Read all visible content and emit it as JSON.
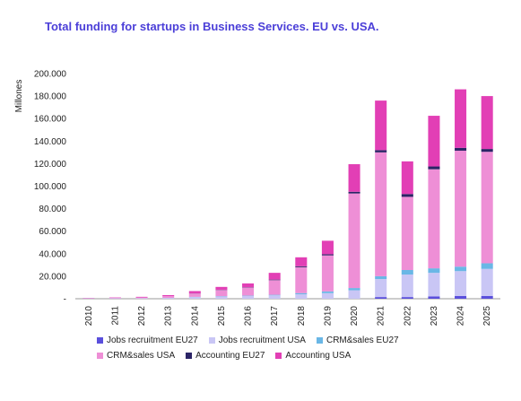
{
  "chart_data": {
    "type": "bar",
    "stacked": true,
    "title": "Total funding for startups in Business Services. EU vs. USA.",
    "ylabel": "Millones",
    "ylim": [
      0,
      200000
    ],
    "yticks": [
      "-",
      "20.000",
      "40.000",
      "60.000",
      "80.000",
      "100.000",
      "120.000",
      "140.000",
      "160.000",
      "180.000",
      "200.000"
    ],
    "categories": [
      "2010",
      "2011",
      "2012",
      "2013",
      "2014",
      "2015",
      "2016",
      "2017",
      "2018",
      "2019",
      "2020",
      "2021",
      "2022",
      "2023",
      "2024",
      "2025"
    ],
    "series": [
      {
        "name": "Jobs recruitment EU27",
        "color": "#5a4fdc",
        "values": [
          0,
          0,
          0,
          0,
          0,
          0,
          0,
          0,
          0,
          0,
          0,
          1500,
          1500,
          2000,
          2500,
          2500
        ]
      },
      {
        "name": "Jobs recruitment USA",
        "color": "#c9c6f5",
        "values": [
          300,
          400,
          500,
          800,
          1500,
          2000,
          2500,
          3000,
          4000,
          5000,
          7500,
          16000,
          20000,
          21000,
          22000,
          24000
        ]
      },
      {
        "name": "CRM&sales EU27",
        "color": "#6ab7e6",
        "values": [
          0,
          0,
          0,
          0,
          200,
          300,
          300,
          500,
          1000,
          1500,
          2000,
          2500,
          4000,
          4000,
          4000,
          5000
        ]
      },
      {
        "name": "CRM&sales USA",
        "color": "#ee8fd6",
        "values": [
          300,
          500,
          700,
          1500,
          3000,
          5500,
          7000,
          13000,
          23000,
          32000,
          84000,
          110000,
          65000,
          88000,
          103000,
          99000
        ]
      },
      {
        "name": "Accounting EU27",
        "color": "#2b2466",
        "values": [
          0,
          0,
          0,
          0,
          100,
          200,
          300,
          500,
          800,
          1000,
          1500,
          2000,
          2500,
          2500,
          2500,
          2500
        ]
      },
      {
        "name": "Accounting USA",
        "color": "#e23fb5",
        "values": [
          200,
          300,
          500,
          900,
          2000,
          2500,
          3500,
          6000,
          8000,
          12000,
          24500,
          44000,
          29000,
          45000,
          52000,
          47000
        ]
      }
    ],
    "legend_position": "bottom",
    "grid": false
  }
}
